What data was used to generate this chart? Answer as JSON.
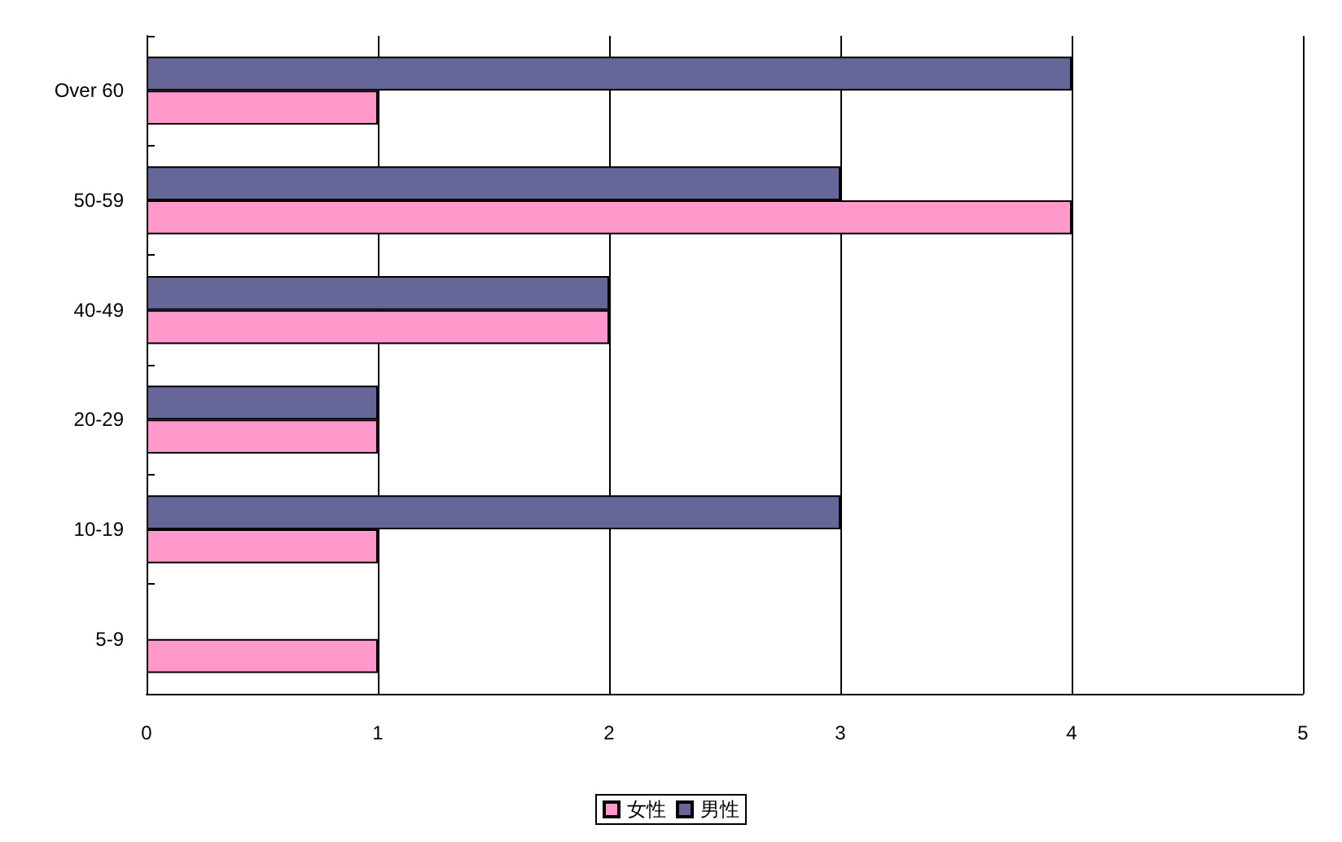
{
  "chart_data": {
    "type": "bar",
    "orientation": "horizontal",
    "categories": [
      "Over 60",
      "50-59",
      "40-49",
      "20-29",
      "10-19",
      "5-9"
    ],
    "series": [
      {
        "name": "女性",
        "color": "#ff99cc",
        "values": [
          1,
          4,
          2,
          1,
          1,
          1
        ]
      },
      {
        "name": "男性",
        "color": "#666699",
        "values": [
          4,
          3,
          2,
          1,
          3,
          null
        ]
      }
    ],
    "xlim": [
      0,
      5
    ],
    "xticks": [
      0,
      1,
      2,
      3,
      4,
      5
    ],
    "grid": "x",
    "legend": "bottom"
  }
}
